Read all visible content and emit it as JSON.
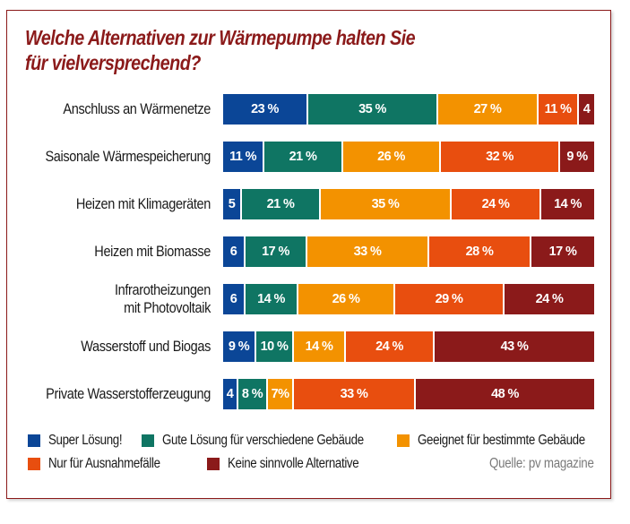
{
  "chart_data": {
    "type": "bar",
    "orientation": "horizontal",
    "stacked": true,
    "normalized": true,
    "title": "Welche Alternativen zur Wärmepumpe halten Sie für vielversprechend?",
    "title_lines": [
      "Welche Alternativen zur Wärmepumpe halten Sie",
      "für vielversprechend?"
    ],
    "xlabel": "",
    "ylabel": "",
    "grid": false,
    "legend_position": "bottom",
    "source": "Quelle: pv magazine",
    "categories": [
      "Anschluss an Wärmenetze",
      "Saisonale Wärmespeicherung",
      "Heizen mit Klimageräten",
      "Heizen mit Biomasse",
      "Infrarotheizungen mit Photovoltaik",
      "Wasserstoff und Biogas",
      "Private Wasserstofferzeugung"
    ],
    "category_lines": [
      [
        "Anschluss an Wärmenetze"
      ],
      [
        "Saisonale Wärmespeicherung"
      ],
      [
        "Heizen mit Klimageräten"
      ],
      [
        "Heizen mit Biomasse"
      ],
      [
        "Infrarotheizungen",
        "mit Photovoltaik"
      ],
      [
        "Wasserstoff und Biogas"
      ],
      [
        "Private Wasserstofferzeugung"
      ]
    ],
    "series": [
      {
        "name": "Super Lösung!",
        "color": "#0b4697",
        "values": [
          23,
          11,
          5,
          6,
          6,
          9,
          4
        ],
        "labels": [
          "23 %",
          "11 %",
          "5",
          "6",
          "6",
          "9 %",
          "4"
        ]
      },
      {
        "name": "Gute Lösung für verschiedene Gebäude",
        "color": "#0f7563",
        "values": [
          35,
          21,
          21,
          17,
          14,
          10,
          8
        ],
        "labels": [
          "35 %",
          "21 %",
          "21 %",
          "17 %",
          "14 %",
          "10 %",
          "8 %"
        ]
      },
      {
        "name": "Geeignet für bestimmte Gebäude",
        "color": "#f39200",
        "values": [
          27,
          26,
          35,
          33,
          26,
          14,
          7
        ],
        "labels": [
          "27 %",
          "26 %",
          "35 %",
          "33 %",
          "26 %",
          "14 %",
          "7%"
        ]
      },
      {
        "name": "Nur für Ausnahmefälle",
        "color": "#e84e0f",
        "values": [
          11,
          32,
          24,
          28,
          29,
          24,
          33
        ],
        "labels": [
          "11 %",
          "32 %",
          "24 %",
          "28 %",
          "29 %",
          "24 %",
          "33 %"
        ]
      },
      {
        "name": "Keine sinnvolle Alternative",
        "color": "#8b1a1a",
        "values": [
          4,
          9,
          14,
          17,
          24,
          43,
          48
        ],
        "labels": [
          "4",
          "9 %",
          "14 %",
          "17 %",
          "24 %",
          "43 %",
          "48 %"
        ]
      }
    ]
  },
  "colors": {
    "frame": "#8b1a1a",
    "title": "#8b1a1a",
    "source": "#7a7a7a"
  }
}
